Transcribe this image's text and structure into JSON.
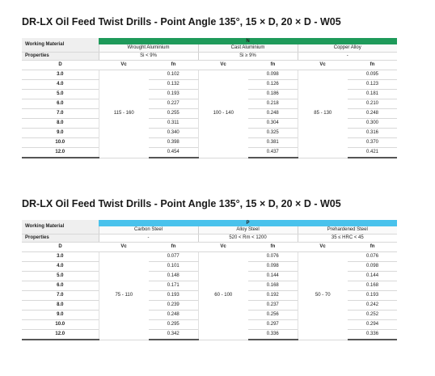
{
  "tables": [
    {
      "title": "DR-LX Oil Feed Twist Drills - Point Angle 135°, 15 × D, 20 × D - W05",
      "group": "N",
      "group_color": "#1e9a5a",
      "working_material_label": "Working Material",
      "properties_label": "Properties",
      "d_label": "D",
      "d": [
        "3.0",
        "4.0",
        "5.0",
        "6.0",
        "7.0",
        "8.0",
        "9.0",
        "10.0",
        "12.0"
      ],
      "materials": [
        {
          "name": "Wrought Aluminium",
          "property": "Si < 9%",
          "vc_label": "Vc",
          "fn_label": "fn",
          "vc": "115 - 160",
          "fn": [
            "0.102",
            "0.132",
            "0.193",
            "0.227",
            "0.255",
            "0.311",
            "0.340",
            "0.398",
            "0.454"
          ]
        },
        {
          "name": "Cast Aluminium",
          "property": "Si ≥ 9%",
          "vc_label": "Vc",
          "fn_label": "fn",
          "vc": "100 - 140",
          "fn": [
            "0.098",
            "0.126",
            "0.186",
            "0.218",
            "0.248",
            "0.304",
            "0.325",
            "0.381",
            "0.437"
          ]
        },
        {
          "name": "Copper Alloy",
          "property": "-",
          "vc_label": "Vc",
          "fn_label": "fn",
          "vc": "85 - 130",
          "fn": [
            "0.095",
            "0.123",
            "0.181",
            "0.210",
            "0.248",
            "0.300",
            "0.316",
            "0.370",
            "0.421"
          ]
        }
      ]
    },
    {
      "title": "DR-LX Oil Feed Twist Drills - Point Angle 135°, 15 × D, 20 × D - W05",
      "group": "P",
      "group_color": "#49c2ec",
      "working_material_label": "Working Material",
      "properties_label": "Properties",
      "d_label": "D",
      "d": [
        "3.0",
        "4.0",
        "5.0",
        "6.0",
        "7.0",
        "8.0",
        "9.0",
        "10.0",
        "12.0"
      ],
      "materials": [
        {
          "name": "Carbon Steel",
          "property": "-",
          "vc_label": "Vc",
          "fn_label": "fn",
          "vc": "75 - 110",
          "fn": [
            "0.077",
            "0.101",
            "0.148",
            "0.171",
            "0.193",
            "0.239",
            "0.248",
            "0.295",
            "0.342"
          ]
        },
        {
          "name": "Alloy Steel",
          "property": "520 < Rm < 1200",
          "vc_label": "Vc",
          "fn_label": "fn",
          "vc": "60 - 100",
          "fn": [
            "0.076",
            "0.098",
            "0.144",
            "0.168",
            "0.192",
            "0.237",
            "0.256",
            "0.297",
            "0.336"
          ]
        },
        {
          "name": "Prehardened Steel",
          "property": "35 ≤ HRC < 45",
          "vc_label": "Vc",
          "fn_label": "fn",
          "vc": "50 - 70",
          "fn": [
            "0.076",
            "0.098",
            "0.144",
            "0.168",
            "0.193",
            "0.242",
            "0.252",
            "0.294",
            "0.336"
          ]
        }
      ]
    }
  ]
}
